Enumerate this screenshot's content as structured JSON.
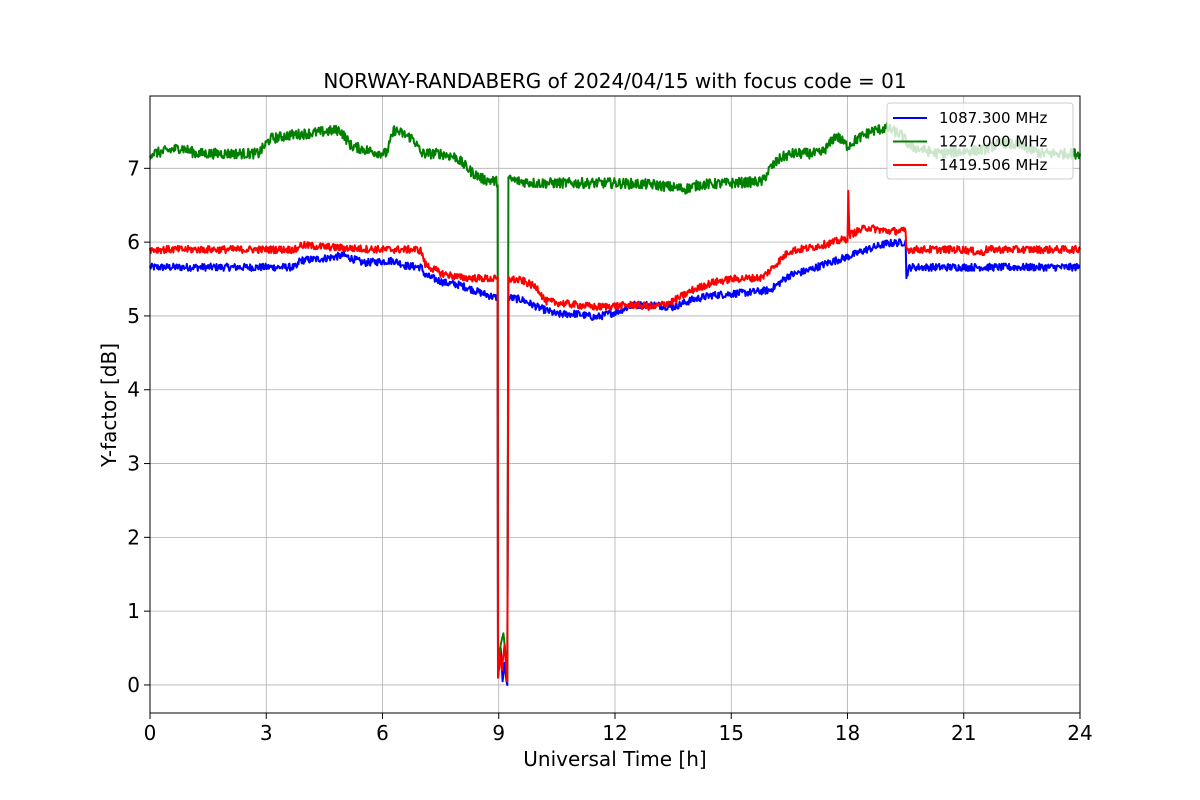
{
  "chart_data": {
    "type": "line",
    "title": "NORWAY-RANDABERG of 2024/04/15 with focus code = 01",
    "xlabel": "Universal Time [h]",
    "ylabel": "Y-factor [dB]",
    "xlim": [
      0,
      24
    ],
    "ylim": [
      -0.38,
      7.98
    ],
    "xticks": [
      0,
      3,
      6,
      9,
      12,
      15,
      18,
      21,
      24
    ],
    "xtick_labels": [
      "0",
      "3",
      "6",
      "9",
      "12",
      "15",
      "18",
      "21",
      "24"
    ],
    "yticks": [
      0,
      1,
      2,
      3,
      4,
      5,
      6,
      7
    ],
    "ytick_labels": [
      "0",
      "1",
      "2",
      "3",
      "4",
      "5",
      "6",
      "7"
    ],
    "grid": true,
    "legend_position": "top-right",
    "series": [
      {
        "name": "1087.300 MHz",
        "color": "#0000ff",
        "noise": 0.05,
        "points": [
          [
            0,
            5.66
          ],
          [
            3.8,
            5.66
          ],
          [
            3.85,
            5.75
          ],
          [
            4.5,
            5.78
          ],
          [
            5.0,
            5.82
          ],
          [
            5.5,
            5.72
          ],
          [
            6.3,
            5.75
          ],
          [
            6.6,
            5.68
          ],
          [
            7.0,
            5.66
          ],
          [
            7.1,
            5.55
          ],
          [
            7.6,
            5.45
          ],
          [
            8.0,
            5.42
          ],
          [
            8.5,
            5.32
          ],
          [
            8.9,
            5.25
          ],
          [
            8.97,
            5.25
          ],
          [
            8.98,
            0.1
          ],
          [
            9.0,
            0.2
          ],
          [
            9.05,
            0.5
          ],
          [
            9.1,
            0.05
          ],
          [
            9.15,
            0.3
          ],
          [
            9.2,
            0.05
          ],
          [
            9.22,
            0.0
          ],
          [
            9.25,
            5.25
          ],
          [
            9.6,
            5.22
          ],
          [
            10.0,
            5.12
          ],
          [
            10.5,
            5.02
          ],
          [
            11.0,
            5.03
          ],
          [
            11.5,
            4.98
          ],
          [
            12.0,
            5.05
          ],
          [
            12.5,
            5.15
          ],
          [
            13.0,
            5.15
          ],
          [
            13.5,
            5.12
          ],
          [
            14.0,
            5.22
          ],
          [
            14.5,
            5.28
          ],
          [
            15.0,
            5.3
          ],
          [
            15.5,
            5.32
          ],
          [
            16.0,
            5.35
          ],
          [
            16.5,
            5.55
          ],
          [
            17.0,
            5.62
          ],
          [
            17.5,
            5.72
          ],
          [
            18.0,
            5.8
          ],
          [
            18.5,
            5.9
          ],
          [
            19.0,
            5.98
          ],
          [
            19.5,
            6.0
          ],
          [
            19.52,
            5.55
          ],
          [
            19.6,
            5.66
          ],
          [
            21.0,
            5.66
          ],
          [
            24.0,
            5.66
          ]
        ]
      },
      {
        "name": "1227.000 MHz",
        "color": "#008000",
        "noise": 0.07,
        "points": [
          [
            0,
            7.2
          ],
          [
            0.3,
            7.22
          ],
          [
            0.8,
            7.28
          ],
          [
            1.2,
            7.2
          ],
          [
            2.8,
            7.2
          ],
          [
            3.1,
            7.4
          ],
          [
            3.6,
            7.45
          ],
          [
            4.2,
            7.48
          ],
          [
            4.9,
            7.52
          ],
          [
            5.2,
            7.3
          ],
          [
            5.8,
            7.22
          ],
          [
            6.1,
            7.2
          ],
          [
            6.3,
            7.52
          ],
          [
            6.8,
            7.4
          ],
          [
            7.0,
            7.2
          ],
          [
            7.5,
            7.2
          ],
          [
            7.9,
            7.15
          ],
          [
            8.3,
            6.95
          ],
          [
            8.6,
            6.85
          ],
          [
            8.97,
            6.82
          ],
          [
            8.98,
            0.1
          ],
          [
            9.05,
            0.55
          ],
          [
            9.12,
            0.7
          ],
          [
            9.18,
            0.4
          ],
          [
            9.22,
            0.05
          ],
          [
            9.25,
            6.85
          ],
          [
            9.6,
            6.82
          ],
          [
            10.0,
            6.8
          ],
          [
            12.0,
            6.8
          ],
          [
            13.0,
            6.78
          ],
          [
            13.8,
            6.72
          ],
          [
            14.2,
            6.78
          ],
          [
            15.0,
            6.8
          ],
          [
            15.8,
            6.82
          ],
          [
            16.0,
            7.0
          ],
          [
            16.3,
            7.15
          ],
          [
            16.6,
            7.2
          ],
          [
            17.3,
            7.2
          ],
          [
            17.5,
            7.3
          ],
          [
            17.7,
            7.45
          ],
          [
            18.0,
            7.3
          ],
          [
            18.2,
            7.38
          ],
          [
            18.6,
            7.5
          ],
          [
            19.0,
            7.55
          ],
          [
            19.4,
            7.45
          ],
          [
            19.6,
            7.3
          ],
          [
            20.3,
            7.2
          ],
          [
            21.5,
            7.25
          ],
          [
            22.0,
            7.35
          ],
          [
            22.5,
            7.3
          ],
          [
            23.0,
            7.2
          ],
          [
            24.0,
            7.2
          ]
        ]
      },
      {
        "name": "1419.506 MHz",
        "color": "#ff0000",
        "noise": 0.05,
        "points": [
          [
            0,
            5.9
          ],
          [
            3.8,
            5.9
          ],
          [
            3.85,
            5.96
          ],
          [
            5.0,
            5.92
          ],
          [
            6.0,
            5.9
          ],
          [
            6.9,
            5.9
          ],
          [
            7.0,
            5.88
          ],
          [
            7.1,
            5.7
          ],
          [
            7.5,
            5.58
          ],
          [
            8.0,
            5.52
          ],
          [
            8.97,
            5.5
          ],
          [
            8.98,
            0.1
          ],
          [
            9.0,
            0.5
          ],
          [
            9.08,
            0.2
          ],
          [
            9.15,
            0.55
          ],
          [
            9.22,
            0.05
          ],
          [
            9.25,
            5.5
          ],
          [
            9.6,
            5.48
          ],
          [
            10.0,
            5.38
          ],
          [
            10.2,
            5.2
          ],
          [
            10.5,
            5.18
          ],
          [
            11.5,
            5.12
          ],
          [
            12.5,
            5.15
          ],
          [
            13.0,
            5.12
          ],
          [
            13.5,
            5.2
          ],
          [
            14.0,
            5.35
          ],
          [
            14.5,
            5.45
          ],
          [
            15.0,
            5.5
          ],
          [
            15.8,
            5.52
          ],
          [
            16.0,
            5.62
          ],
          [
            16.5,
            5.88
          ],
          [
            17.0,
            5.92
          ],
          [
            17.5,
            5.98
          ],
          [
            18.0,
            6.05
          ],
          [
            18.02,
            6.65
          ],
          [
            18.05,
            6.1
          ],
          [
            18.5,
            6.2
          ],
          [
            19.0,
            6.15
          ],
          [
            19.5,
            6.15
          ],
          [
            19.52,
            5.9
          ],
          [
            21.0,
            5.9
          ],
          [
            21.5,
            5.85
          ],
          [
            21.55,
            5.9
          ],
          [
            24.0,
            5.9
          ]
        ]
      }
    ]
  }
}
